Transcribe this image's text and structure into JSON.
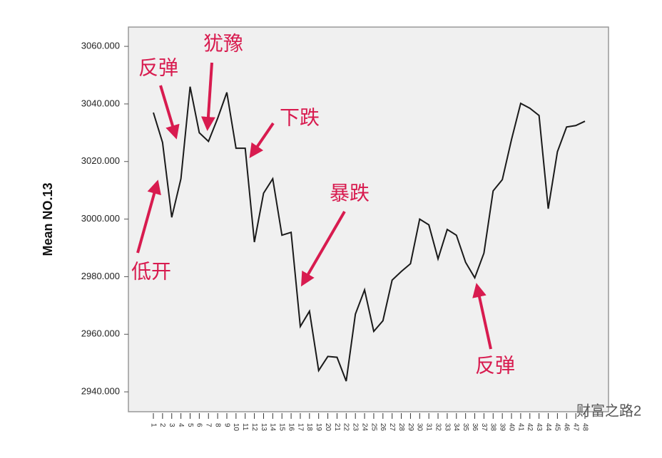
{
  "chart_data": {
    "type": "line",
    "y_label": "Mean NO.13",
    "categories": [
      "1",
      "2",
      "3",
      "4",
      "5",
      "6",
      "7",
      "8",
      "9",
      "10",
      "11",
      "12",
      "13",
      "14",
      "15",
      "16",
      "17",
      "18",
      "19",
      "20",
      "21",
      "22",
      "23",
      "24",
      "25",
      "26",
      "27",
      "28",
      "29",
      "30",
      "31",
      "32",
      "33",
      "34",
      "35",
      "36",
      "37",
      "38",
      "39",
      "40",
      "41",
      "42",
      "43",
      "44",
      "45",
      "46",
      "47",
      "48"
    ],
    "values": [
      3037,
      3026.6,
      3000.6,
      3014,
      3046,
      3030,
      3027,
      3035,
      3044,
      3024.6,
      3024.6,
      2992,
      3009,
      3014,
      2994.4,
      2995.4,
      2962.7,
      2968,
      2947.4,
      2952.3,
      2952,
      2943.7,
      2967,
      2975.4,
      2961,
      2964.7,
      2978.8,
      2981.8,
      2984.5,
      3000,
      2998,
      2986.2,
      2996.4,
      2994.4,
      2985,
      2979.6,
      2988.2,
      3009.8,
      3013.7,
      3027.6,
      3040.2,
      3038.5,
      3036,
      3003.6,
      3023.4,
      3032,
      3032.5,
      3034
    ],
    "color": "#1a1a1a",
    "ylim": [
      2933.1,
      3066.7
    ],
    "yticks": [
      {
        "value": 2940,
        "label": "2940.000"
      },
      {
        "value": 2960,
        "label": "2960.000"
      },
      {
        "value": 2980,
        "label": "2980.000"
      },
      {
        "value": 3000,
        "label": "3000.000"
      },
      {
        "value": 3020,
        "label": "3020.000"
      },
      {
        "value": 3040,
        "label": "3040.000"
      },
      {
        "value": 3060,
        "label": "3060.000"
      }
    ],
    "annotations": [
      "反弹",
      "犹豫",
      "下跌",
      "暴跌",
      "低开",
      "反弹"
    ],
    "watermark": "财富之路2"
  }
}
